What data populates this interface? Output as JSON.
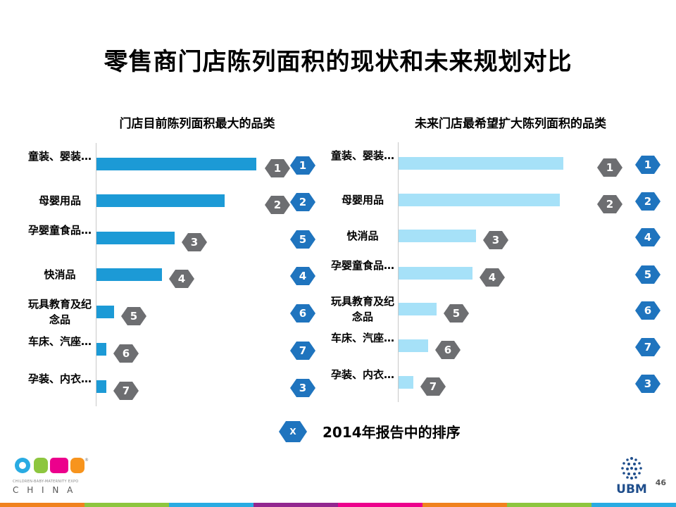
{
  "title": "零售商门店陈列面积的现状和未来规划对比",
  "chart_data": [
    {
      "type": "bar",
      "orientation": "horizontal",
      "title": "门店目前陈列面积最大的品类",
      "categories": [
        "童装、婴装…",
        "母婴用品",
        "孕婴童食品…",
        "快消品",
        "玩具教育及纪念品",
        "车床、汽座…",
        "孕装、内衣…"
      ],
      "values": [
        100,
        80,
        49,
        41,
        11,
        6,
        6
      ],
      "ranks": [
        "1",
        "2",
        "3",
        "4",
        "5",
        "6",
        "7"
      ],
      "ranks_2014": [
        "1",
        "2",
        "5",
        "4",
        "6",
        "7",
        "3"
      ],
      "bar_color": "#1c9ad6",
      "xlim": [
        0,
        100
      ]
    },
    {
      "type": "bar",
      "orientation": "horizontal",
      "title": "未来门店最希望扩大陈列面积的品类",
      "categories": [
        "童装、婴装…",
        "母婴用品",
        "快消品",
        "孕婴童食品…",
        "玩具教育及纪念品",
        "车床、汽座…",
        "孕装、内衣…"
      ],
      "values": [
        100,
        98,
        47,
        45,
        23,
        18,
        9
      ],
      "ranks": [
        "1",
        "2",
        "3",
        "4",
        "5",
        "6",
        "7"
      ],
      "ranks_2014": [
        "1",
        "2",
        "4",
        "5",
        "6",
        "7",
        "3"
      ],
      "bar_color": "#a6e1f8",
      "xlim": [
        0,
        100
      ]
    }
  ],
  "legend": {
    "marker": "X",
    "text": "2014年报告中的排序"
  },
  "logo": {
    "brand": "CBME",
    "tagline": "CHILDREN-BABY-MATERNITY EXPO",
    "country": "C H I N A",
    "company": "UBM"
  },
  "page_number": "46",
  "colors": {
    "dark_hex": "#6d6e71",
    "blue_hex": "#1f74be"
  },
  "footer_colors": [
    "#f0821e",
    "#8dc63f",
    "#29abe2",
    "#92278f",
    "#ec008c",
    "#f0821e",
    "#8dc63f",
    "#29abe2"
  ]
}
